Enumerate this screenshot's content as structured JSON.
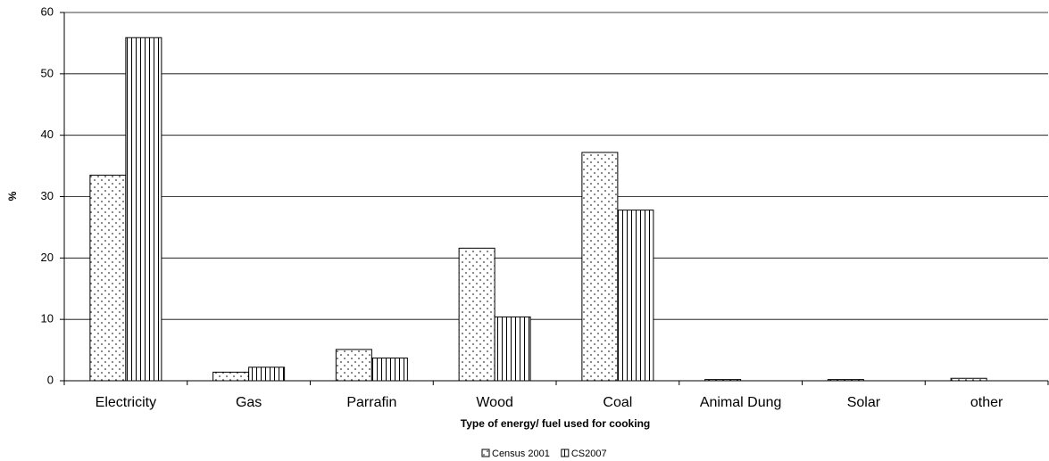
{
  "chart_data": {
    "type": "bar",
    "categories": [
      "Electricity",
      "Gas",
      "Parrafin",
      "Wood",
      "Coal",
      "Animal Dung",
      "Solar",
      "other"
    ],
    "series": [
      {
        "name": "Census 2001",
        "values": [
          33.5,
          1.4,
          5.1,
          21.6,
          37.2,
          0.2,
          0.2,
          0.4
        ]
      },
      {
        "name": "CS2007",
        "values": [
          55.9,
          2.2,
          3.7,
          10.4,
          27.8,
          0,
          0,
          0
        ]
      }
    ],
    "xlabel": "Type of energy/ fuel used for cooking",
    "ylabel": "%",
    "ylim": [
      0,
      60
    ],
    "yticks": [
      0,
      10,
      20,
      30,
      40,
      50,
      60
    ],
    "grid": true,
    "legend": "bottom"
  }
}
